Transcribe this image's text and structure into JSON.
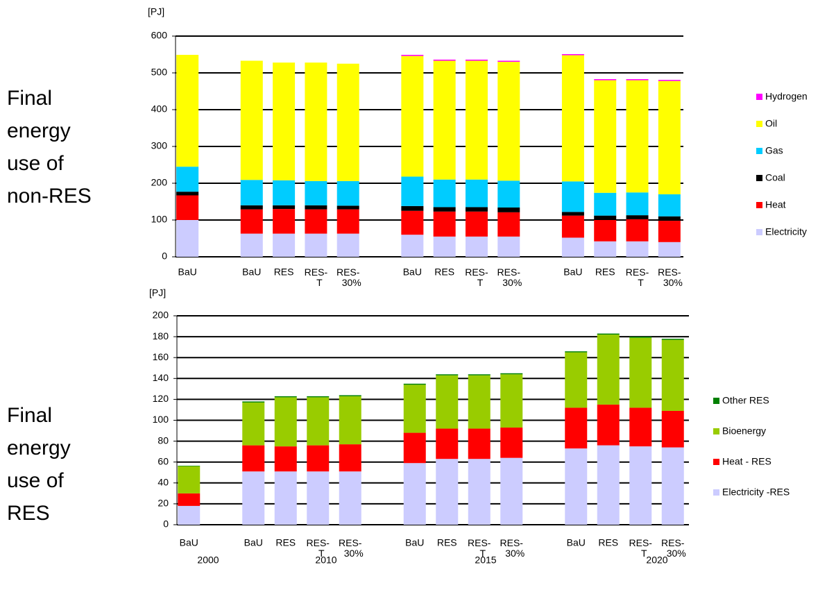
{
  "chart_data": [
    {
      "type": "stacked_bar",
      "y_label": "[PJ]",
      "side_label": "Final energy use of non-RES",
      "categories": [
        "BaU",
        null,
        "BaU",
        "RES",
        "RES-T",
        "RES-30%",
        null,
        "BaU",
        "RES",
        "RES-T",
        "RES-30%",
        null,
        "BaU",
        "RES",
        "RES-T",
        "RES-30%"
      ],
      "series": [
        {
          "name": "Electricity",
          "color": "#ccccff",
          "values": [
            100,
            null,
            63,
            63,
            63,
            63,
            null,
            60,
            55,
            55,
            55,
            null,
            52,
            42,
            42,
            40
          ]
        },
        {
          "name": "Heat",
          "color": "#ff0000",
          "values": [
            67,
            null,
            66,
            67,
            66,
            66,
            null,
            65,
            68,
            68,
            66,
            null,
            60,
            58,
            60,
            58
          ]
        },
        {
          "name": "Coal",
          "color": "#000000",
          "values": [
            10,
            null,
            11,
            10,
            11,
            10,
            null,
            13,
            12,
            12,
            13,
            null,
            10,
            12,
            11,
            12
          ]
        },
        {
          "name": "Gas",
          "color": "#00ccff",
          "values": [
            68,
            null,
            69,
            68,
            66,
            67,
            null,
            80,
            75,
            75,
            73,
            null,
            83,
            62,
            62,
            60
          ]
        },
        {
          "name": "Oil",
          "color": "#ffff00",
          "values": [
            304,
            null,
            324,
            320,
            322,
            319,
            null,
            328,
            323,
            323,
            323,
            null,
            343,
            306,
            305,
            308
          ]
        },
        {
          "name": "Hydrogen",
          "color": "#ff00ff",
          "values": [
            0,
            null,
            0,
            0,
            0,
            0,
            null,
            3,
            3,
            3,
            3,
            null,
            3,
            3,
            3,
            3
          ]
        }
      ],
      "ylim": [
        0,
        600
      ],
      "yticks": [
        0,
        100,
        200,
        300,
        400,
        500,
        600
      ],
      "grid": true,
      "legend": "right"
    },
    {
      "type": "stacked_bar",
      "y_label": "[PJ]",
      "side_label": "Final energy use of RES",
      "categories": [
        "BaU",
        null,
        "BaU",
        "RES",
        "RES-T",
        "RES-30%",
        null,
        "BaU",
        "RES",
        "RES-T",
        "RES-30%",
        null,
        "BaU",
        "RES",
        "RES-T",
        "RES-30%"
      ],
      "group_labels": [
        "2000",
        "2010",
        "2015",
        "2020"
      ],
      "series": [
        {
          "name": "Electricity -RES",
          "color": "#ccccff",
          "values": [
            18,
            null,
            51,
            51,
            51,
            51,
            null,
            59,
            63,
            63,
            64,
            null,
            73,
            76,
            75,
            74
          ]
        },
        {
          "name": "Heat - RES",
          "color": "#ff0000",
          "values": [
            12,
            null,
            25,
            24,
            25,
            26,
            null,
            29,
            29,
            29,
            29,
            null,
            39,
            39,
            37,
            35
          ]
        },
        {
          "name": "Bioenergy",
          "color": "#99cc00",
          "values": [
            26,
            null,
            41,
            47,
            46,
            46,
            null,
            46,
            51,
            51,
            51,
            null,
            53,
            67,
            67,
            68
          ]
        },
        {
          "name": "Other RES",
          "color": "#008000",
          "values": [
            0.5,
            null,
            1,
            1,
            1,
            1,
            null,
            1,
            1,
            1,
            1,
            null,
            1,
            1,
            1,
            1
          ]
        }
      ],
      "ylim": [
        0,
        200
      ],
      "yticks": [
        0,
        20,
        40,
        60,
        80,
        100,
        120,
        140,
        160,
        180,
        200
      ],
      "grid": true,
      "legend": "right"
    }
  ]
}
